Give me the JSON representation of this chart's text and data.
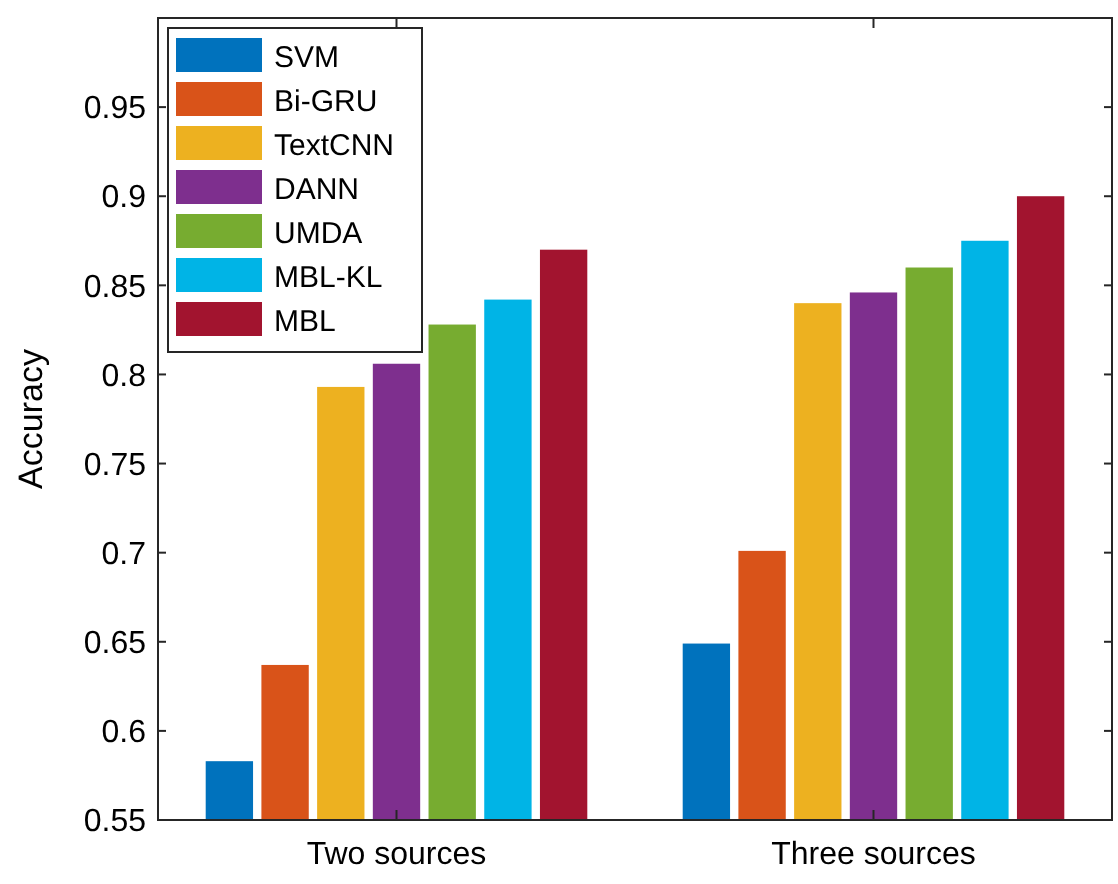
{
  "chart_data": {
    "type": "bar",
    "ylabel": "Accuracy",
    "categories": [
      "Two sources",
      "Three sources"
    ],
    "series": [
      {
        "name": "SVM",
        "color": "#0072bd",
        "values": [
          0.583,
          0.649
        ]
      },
      {
        "name": "Bi-GRU",
        "color": "#d95319",
        "values": [
          0.637,
          0.701
        ]
      },
      {
        "name": "TextCNN",
        "color": "#edb120",
        "values": [
          0.793,
          0.84
        ]
      },
      {
        "name": "DANN",
        "color": "#7e2f8e",
        "values": [
          0.806,
          0.846
        ]
      },
      {
        "name": "UMDA",
        "color": "#77ac30",
        "values": [
          0.828,
          0.86
        ]
      },
      {
        "name": "MBL-KL",
        "color": "#00b4e6",
        "values": [
          0.842,
          0.875
        ]
      },
      {
        "name": "MBL",
        "color": "#a2142f",
        "values": [
          0.87,
          0.9
        ]
      }
    ],
    "ylim": [
      0.55,
      1.0
    ],
    "yticks": [
      0.55,
      0.6,
      0.65,
      0.7,
      0.75,
      0.8,
      0.85,
      0.9,
      0.95
    ],
    "grid": false,
    "legend": "top left"
  }
}
